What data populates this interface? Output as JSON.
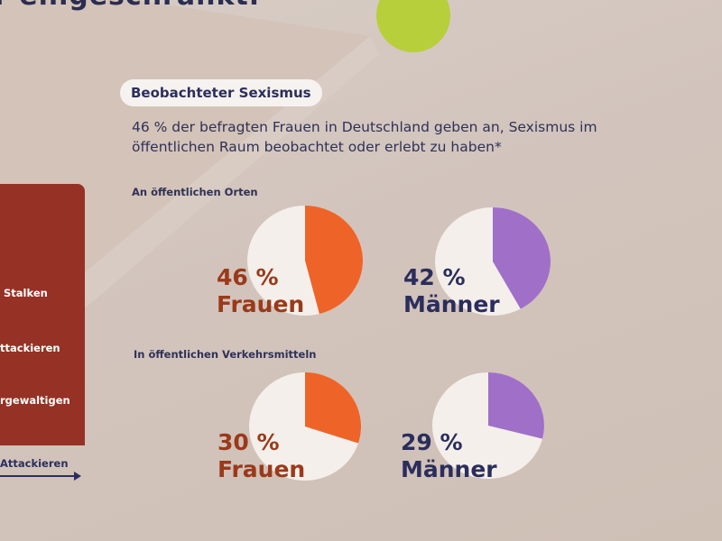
{
  "header": {
    "partial_heading": "r eingeschränkt."
  },
  "section_title": "Beobachteter Sexismus",
  "intro_text_line1": "46 % der befragten Frauen in Deutschland geben an, Sexismus im",
  "intro_text_line2": "öffentlichen Raum beobachtet oder erlebt zu haben*",
  "side_panel": {
    "items": [
      "Stalken",
      "ttackieren",
      "rgewaltigen"
    ],
    "bottom_label": "Attackieren"
  },
  "colors": {
    "frauen": "#ee6428",
    "maenner": "#a070c8",
    "pie_base": "#f4efeb",
    "text_frauen": "#9a3a1a",
    "text_maenner": "#2b2e5c"
  },
  "chart_data": [
    {
      "type": "pie",
      "section": "An öffentlichen Orten",
      "pct_label": "46 %",
      "group": "Frauen",
      "value": 46
    },
    {
      "type": "pie",
      "section": "An öffentlichen Orten",
      "pct_label": "42 %",
      "group": "Männer",
      "value": 42
    },
    {
      "type": "pie",
      "section": "In öffentlichen Verkehrsmitteln",
      "pct_label": "30 %",
      "group": "Frauen",
      "value": 30
    },
    {
      "type": "pie",
      "section": "In öffentlichen Verkehrsmitteln",
      "pct_label": "29 %",
      "group": "Männer",
      "value": 29
    }
  ]
}
